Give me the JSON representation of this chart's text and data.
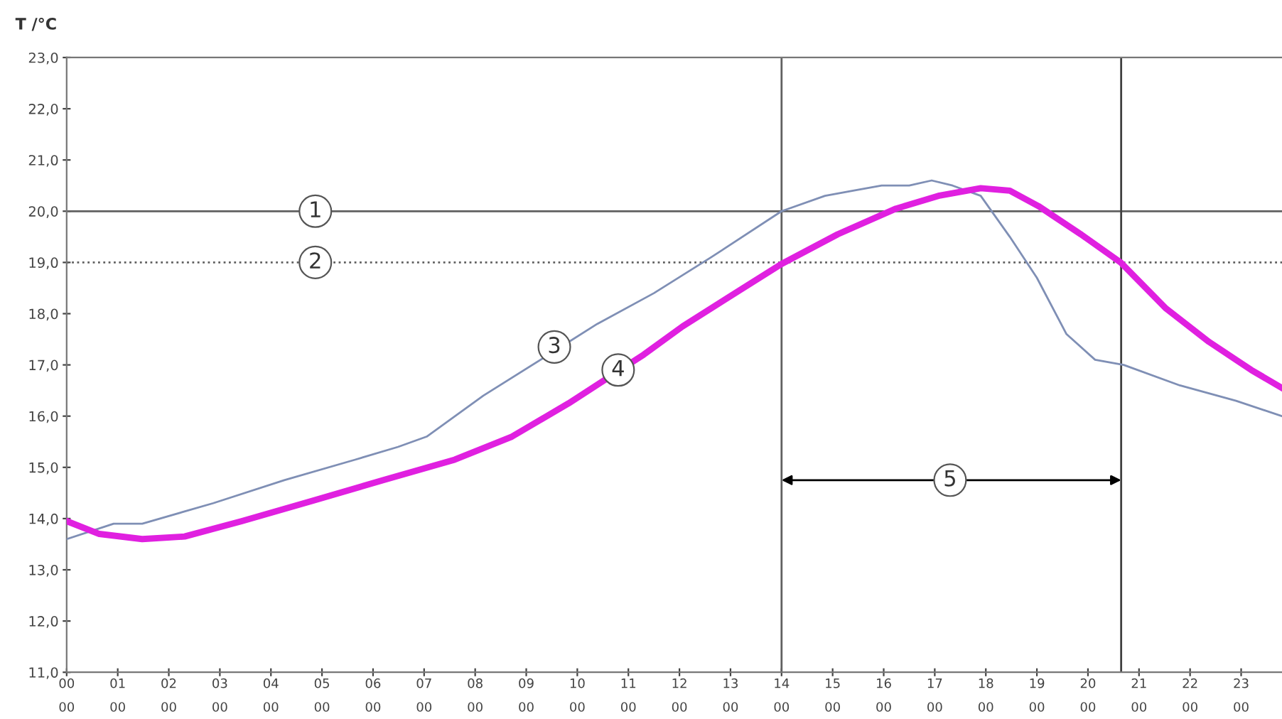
{
  "chart_data": {
    "type": "line",
    "ylabel": "T /°C",
    "xlim": [
      0,
      23.8
    ],
    "ylim": [
      11.0,
      23.0
    ],
    "xticks": [
      {
        "value": 0,
        "label": "00"
      },
      {
        "value": 1,
        "label": "01"
      },
      {
        "value": 2,
        "label": "02"
      },
      {
        "value": 3,
        "label": "03"
      },
      {
        "value": 4,
        "label": "04"
      },
      {
        "value": 5,
        "label": "05"
      },
      {
        "value": 6,
        "label": "06"
      },
      {
        "value": 7,
        "label": "07"
      },
      {
        "value": 8,
        "label": "08"
      },
      {
        "value": 9,
        "label": "09"
      },
      10,
      11,
      12,
      13,
      14,
      15,
      16,
      17,
      18,
      19,
      20,
      21,
      22,
      23
    ],
    "yticks": [
      {
        "value": 11,
        "label": "11,0"
      },
      {
        "value": 12,
        "label": "12,0"
      },
      {
        "value": 13,
        "label": "13,0"
      },
      {
        "value": 14,
        "label": "14,0"
      },
      {
        "value": 15,
        "label": "15,0"
      },
      {
        "value": 16,
        "label": "16,0"
      },
      {
        "value": 17,
        "label": "17,0"
      },
      {
        "value": 18,
        "label": "18,0"
      },
      {
        "value": 19,
        "label": "19,0"
      },
      {
        "value": 20,
        "label": "20,0"
      },
      {
        "value": 21,
        "label": "21,0"
      },
      {
        "value": 22,
        "label": "22,0"
      },
      {
        "value": 23,
        "label": "23,0"
      }
    ],
    "grid": false,
    "legend": false,
    "marker": "none",
    "series": [
      {
        "color": "#7f8fb5",
        "x": [
          0,
          0.92,
          1.48,
          2.87,
          4.26,
          5.65,
          6.49,
          7.05,
          8.16,
          9.28,
          10.39,
          11.5,
          12.62,
          14.0,
          14.85,
          15.4,
          15.96,
          16.5,
          16.94,
          17.35,
          17.9,
          18.47,
          19.0,
          19.58,
          20.14,
          20.7,
          21.8,
          22.9,
          23.8
        ],
        "values": [
          13.6,
          13.9,
          13.9,
          14.3,
          14.75,
          15.15,
          15.4,
          15.6,
          16.4,
          17.1,
          17.8,
          18.4,
          19.1,
          20.0,
          20.3,
          20.4,
          20.5,
          20.5,
          20.6,
          20.5,
          20.3,
          19.5,
          18.7,
          17.6,
          17.1,
          17.0,
          16.6,
          16.3,
          16.0
        ]
      },
      {
        "color": "#e020e0",
        "x": [
          0,
          0.64,
          1.48,
          2.31,
          3.43,
          4.82,
          6.2,
          7.6,
          8.72,
          9.83,
          11.3,
          12.06,
          13.17,
          14.0,
          15.1,
          16.24,
          17.07,
          17.9,
          18.47,
          19.03,
          19.86,
          20.64,
          21.53,
          22.37,
          23.2,
          23.8
        ],
        "values": [
          13.95,
          13.7,
          13.6,
          13.65,
          13.95,
          14.35,
          14.75,
          15.15,
          15.6,
          16.25,
          17.2,
          17.75,
          18.45,
          18.97,
          19.55,
          20.05,
          20.3,
          20.45,
          20.4,
          20.1,
          19.55,
          19.0,
          18.1,
          17.45,
          16.9,
          16.55
        ]
      }
    ],
    "ref_lines": [
      {
        "axis": "y",
        "value": 20.0,
        "color": "#606060",
        "line_style": "solid"
      },
      {
        "axis": "y",
        "value": 19.0,
        "color": "#606060",
        "line_style": "dotted"
      },
      {
        "axis": "x",
        "value": 14.0,
        "color": "#606060",
        "line_style": "solid"
      },
      {
        "axis": "x",
        "value": 20.65,
        "color": "#404040",
        "line_style": "solid"
      }
    ],
    "annotations": [
      {
        "text": "1",
        "x": 4.87,
        "y": 20.0
      },
      {
        "text": "2",
        "x": 4.87,
        "y": 19.0
      },
      {
        "text": "3",
        "x": 9.55,
        "y": 17.35
      },
      {
        "text": "4",
        "x": 10.8,
        "y": 16.9
      },
      {
        "text": "5",
        "x": 17.3,
        "y": 14.75
      },
      "00",
      "00",
      "00",
      "00",
      "00",
      "00",
      "00",
      "00",
      "00",
      "00",
      "00",
      "00",
      "00",
      "00",
      "00",
      "00",
      "00",
      "00",
      "00",
      "00",
      "00",
      "00",
      "00",
      "00"
    ]
  }
}
